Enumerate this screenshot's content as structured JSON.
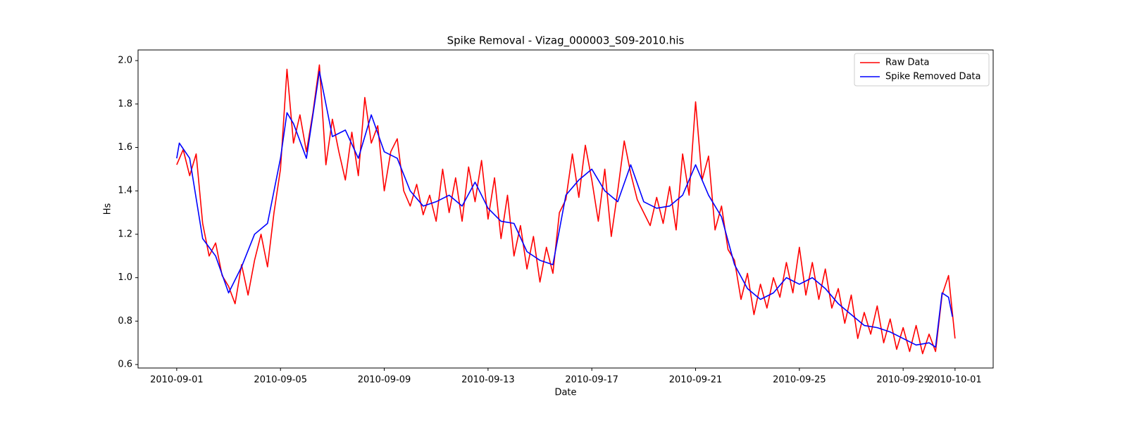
{
  "chart_data": {
    "type": "line",
    "title": "Spike Removal - Vizag_000003_S09-2010.his",
    "xlabel": "Date",
    "ylabel": "Hs",
    "xlim": [
      -0.49,
      32.47
    ],
    "ylim": [
      0.584,
      2.049
    ],
    "xticks": [
      {
        "value": 1,
        "label": "2010-09-01"
      },
      {
        "value": 5,
        "label": "2010-09-05"
      },
      {
        "value": 9,
        "label": "2010-09-09"
      },
      {
        "value": 13,
        "label": "2010-09-13"
      },
      {
        "value": 17,
        "label": "2010-09-17"
      },
      {
        "value": 21,
        "label": "2010-09-21"
      },
      {
        "value": 25,
        "label": "2010-09-25"
      },
      {
        "value": 29,
        "label": "2010-09-29"
      },
      {
        "value": 31,
        "label": "2010-10-01"
      }
    ],
    "yticks": [
      {
        "value": 0.6,
        "label": "0.6"
      },
      {
        "value": 0.8,
        "label": "0.8"
      },
      {
        "value": 1.0,
        "label": "1.0"
      },
      {
        "value": 1.2,
        "label": "1.2"
      },
      {
        "value": 1.4,
        "label": "1.4"
      },
      {
        "value": 1.6,
        "label": "1.6"
      },
      {
        "value": 1.8,
        "label": "1.8"
      },
      {
        "value": 2.0,
        "label": "2.0"
      }
    ],
    "legend": "upper right",
    "series": [
      {
        "name": "Raw Data",
        "color": "#ff0000",
        "x": [
          1,
          1.25,
          1.5,
          1.75,
          2,
          2.25,
          2.5,
          2.75,
          3,
          3.25,
          3.5,
          3.75,
          4,
          4.25,
          4.5,
          4.75,
          5,
          5.25,
          5.5,
          5.75,
          6,
          6.25,
          6.5,
          6.75,
          7,
          7.25,
          7.5,
          7.75,
          8,
          8.25,
          8.5,
          8.75,
          9,
          9.25,
          9.5,
          9.75,
          10,
          10.25,
          10.5,
          10.75,
          11,
          11.25,
          11.5,
          11.75,
          12,
          12.25,
          12.5,
          12.75,
          13,
          13.25,
          13.5,
          13.75,
          14,
          14.25,
          14.5,
          14.75,
          15,
          15.25,
          15.5,
          15.75,
          16,
          16.25,
          16.5,
          16.75,
          17,
          17.25,
          17.5,
          17.75,
          18,
          18.25,
          18.5,
          18.75,
          19,
          19.25,
          19.5,
          19.75,
          20,
          20.25,
          20.5,
          20.75,
          21,
          21.25,
          21.5,
          21.75,
          22,
          22.25,
          22.5,
          22.75,
          23,
          23.25,
          23.5,
          23.75,
          24,
          24.25,
          24.5,
          24.75,
          25,
          25.25,
          25.5,
          25.75,
          26,
          26.25,
          26.5,
          26.75,
          27,
          27.25,
          27.5,
          27.75,
          28,
          28.25,
          28.5,
          28.75,
          29,
          29.25,
          29.5,
          29.75,
          30,
          30.25,
          30.5,
          30.75,
          31
        ],
        "values": [
          1.52,
          1.59,
          1.47,
          1.57,
          1.25,
          1.1,
          1.16,
          1.01,
          0.96,
          0.88,
          1.06,
          0.92,
          1.08,
          1.2,
          1.05,
          1.3,
          1.5,
          1.96,
          1.62,
          1.75,
          1.58,
          1.76,
          1.98,
          1.52,
          1.73,
          1.58,
          1.45,
          1.67,
          1.47,
          1.83,
          1.62,
          1.7,
          1.4,
          1.58,
          1.64,
          1.4,
          1.33,
          1.43,
          1.29,
          1.38,
          1.26,
          1.5,
          1.3,
          1.46,
          1.26,
          1.51,
          1.35,
          1.54,
          1.27,
          1.46,
          1.18,
          1.38,
          1.1,
          1.24,
          1.04,
          1.19,
          0.98,
          1.14,
          1.02,
          1.3,
          1.36,
          1.57,
          1.37,
          1.61,
          1.45,
          1.26,
          1.5,
          1.19,
          1.4,
          1.63,
          1.48,
          1.36,
          1.3,
          1.24,
          1.37,
          1.25,
          1.42,
          1.22,
          1.57,
          1.38,
          1.81,
          1.45,
          1.56,
          1.22,
          1.33,
          1.13,
          1.08,
          0.9,
          1.02,
          0.83,
          0.97,
          0.86,
          1.0,
          0.91,
          1.07,
          0.93,
          1.14,
          0.92,
          1.07,
          0.9,
          1.04,
          0.86,
          0.95,
          0.79,
          0.92,
          0.72,
          0.84,
          0.74,
          0.87,
          0.7,
          0.81,
          0.67,
          0.77,
          0.66,
          0.78,
          0.65,
          0.74,
          0.66,
          0.92,
          1.01,
          0.72
        ]
      },
      {
        "name": "Spike Removed Data",
        "color": "#0000ff",
        "x": [
          1,
          1.1,
          1.5,
          2,
          2.5,
          3,
          3.5,
          4,
          4.5,
          5,
          5.25,
          5.5,
          6,
          6.5,
          7,
          7.5,
          8,
          8.5,
          9,
          9.5,
          10,
          10.5,
          11,
          11.5,
          12,
          12.5,
          13,
          13.5,
          14,
          14.5,
          15,
          15.5,
          16,
          16.5,
          17,
          17.5,
          18,
          18.5,
          19,
          19.5,
          20,
          20.5,
          21,
          21.5,
          22,
          22.5,
          23,
          23.5,
          24,
          24.5,
          25,
          25.5,
          26,
          26.5,
          27,
          27.5,
          28,
          28.5,
          29,
          29.5,
          30,
          30.25,
          30.5,
          30.75,
          30.9
        ],
        "values": [
          1.55,
          1.62,
          1.55,
          1.18,
          1.1,
          0.93,
          1.05,
          1.2,
          1.25,
          1.55,
          1.76,
          1.71,
          1.55,
          1.95,
          1.65,
          1.68,
          1.55,
          1.75,
          1.58,
          1.55,
          1.4,
          1.33,
          1.35,
          1.38,
          1.33,
          1.44,
          1.32,
          1.26,
          1.25,
          1.12,
          1.08,
          1.06,
          1.38,
          1.45,
          1.5,
          1.4,
          1.35,
          1.52,
          1.35,
          1.32,
          1.33,
          1.38,
          1.52,
          1.38,
          1.28,
          1.06,
          0.95,
          0.9,
          0.93,
          1.0,
          0.97,
          1.0,
          0.95,
          0.88,
          0.83,
          0.78,
          0.77,
          0.75,
          0.72,
          0.69,
          0.7,
          0.68,
          0.93,
          0.91,
          0.82
        ]
      }
    ]
  }
}
